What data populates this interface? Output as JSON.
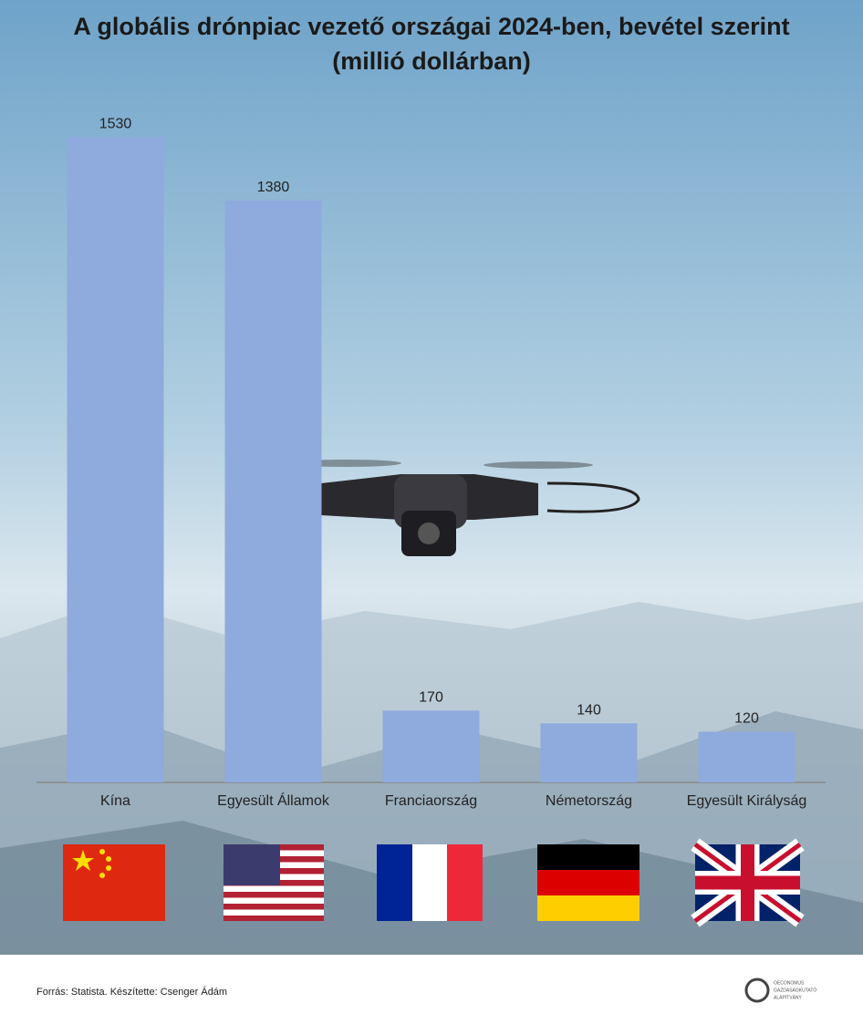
{
  "chart_data": {
    "type": "bar",
    "title": "A globális drónpiac vezető országai 2024-ben, bevétel szerint (millió dollárban)",
    "categories": [
      "Kína",
      "Egyesült Államok",
      "Franciaország",
      "Németország",
      "Egyesült Királyság"
    ],
    "values": [
      1530,
      1380,
      170,
      140,
      120
    ],
    "color": "#8faadc",
    "ylim": [
      0,
      1600
    ],
    "source": "Forrás: Statista. Készítette: Csenger Ádám",
    "logo": [
      "OECONOMUS",
      "GAZDASÁGKUTATÓ",
      "ALAPÍTVÁNY"
    ]
  }
}
